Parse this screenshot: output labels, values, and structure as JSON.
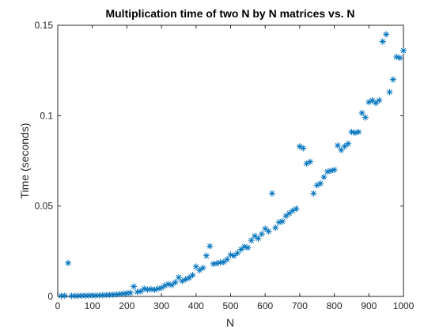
{
  "chart_data": {
    "type": "scatter",
    "title": "Multiplication time of two N by N matrices vs. N",
    "xlabel": "N",
    "ylabel": "Time (seconds)",
    "xlim": [
      0,
      1000
    ],
    "ylim": [
      0,
      0.15
    ],
    "xticks": [
      0,
      100,
      200,
      300,
      400,
      500,
      600,
      700,
      800,
      900,
      1000
    ],
    "xtick_labels": [
      "0",
      "100",
      "200",
      "300",
      "400",
      "500",
      "600",
      "700",
      "800",
      "900",
      "1000"
    ],
    "yticks": [
      0,
      0.05,
      0.1,
      0.15
    ],
    "ytick_labels": [
      "0",
      "0.05",
      "0.1",
      "0.15"
    ],
    "grid": false,
    "marker": "asterisk",
    "color": "#0072BD",
    "series": [
      {
        "x": [
          10,
          20,
          30,
          40,
          50,
          60,
          70,
          80,
          90,
          100,
          110,
          120,
          130,
          140,
          150,
          160,
          170,
          180,
          190,
          200,
          210,
          220,
          230,
          240,
          250,
          260,
          270,
          280,
          290,
          300,
          310,
          320,
          330,
          340,
          350,
          360,
          370,
          380,
          390,
          400,
          410,
          420,
          430,
          440,
          450,
          460,
          470,
          480,
          490,
          500,
          510,
          520,
          530,
          540,
          550,
          560,
          570,
          580,
          590,
          600,
          610,
          620,
          630,
          640,
          650,
          660,
          670,
          680,
          690,
          700,
          710,
          720,
          730,
          740,
          750,
          760,
          770,
          780,
          790,
          800,
          810,
          820,
          830,
          840,
          850,
          860,
          870,
          880,
          890,
          900,
          910,
          920,
          930,
          940,
          950,
          960,
          970,
          980,
          990,
          1000
        ],
        "y": [
          0.0003,
          0.0004,
          0.0185,
          0.0003,
          0.0003,
          0.0003,
          0.0004,
          0.0004,
          0.0005,
          0.0005,
          0.0005,
          0.0006,
          0.0007,
          0.0008,
          0.0009,
          0.001,
          0.0011,
          0.0013,
          0.0015,
          0.0018,
          0.002,
          0.0055,
          0.0025,
          0.0028,
          0.0043,
          0.0038,
          0.004,
          0.0037,
          0.0043,
          0.0047,
          0.006,
          0.0068,
          0.0063,
          0.0078,
          0.0105,
          0.0085,
          0.0095,
          0.0103,
          0.0118,
          0.0165,
          0.0145,
          0.0158,
          0.0225,
          0.0278,
          0.018,
          0.0183,
          0.0188,
          0.019,
          0.0205,
          0.023,
          0.0225,
          0.024,
          0.026,
          0.0275,
          0.027,
          0.031,
          0.0335,
          0.032,
          0.0345,
          0.0375,
          0.036,
          0.057,
          0.038,
          0.041,
          0.0415,
          0.0445,
          0.046,
          0.0475,
          0.0485,
          0.083,
          0.082,
          0.0735,
          0.0745,
          0.057,
          0.0615,
          0.0625,
          0.066,
          0.069,
          0.0695,
          0.07,
          0.0835,
          0.081,
          0.083,
          0.0845,
          0.091,
          0.0905,
          0.091,
          0.1015,
          0.099,
          0.1075,
          0.1085,
          0.107,
          0.1085,
          0.141,
          0.145,
          0.113,
          0.12,
          0.1325,
          0.132,
          0.136
        ]
      }
    ]
  }
}
